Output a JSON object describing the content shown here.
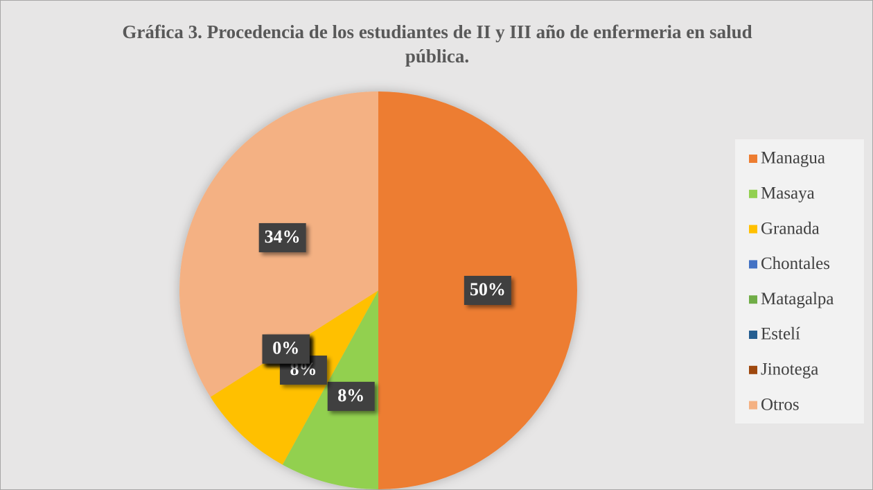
{
  "chart_data": {
    "type": "pie",
    "title": "Gráfica 3. Procedencia de los estudiantes de II y III año de enfermeria en salud pública.",
    "categories": [
      "Managua",
      "Masaya",
      "Granada",
      "Chontales",
      "Matagalpa",
      "Estelí",
      "Jinotega",
      "Otros"
    ],
    "values": [
      50,
      8,
      8,
      0,
      0,
      0,
      0,
      34
    ],
    "value_labels": [
      "50%",
      "8%",
      "8%",
      "0%",
      "0%",
      "0%",
      "0%",
      "34%"
    ],
    "colors": [
      "#ED7D31",
      "#92D050",
      "#FFC000",
      "#4472C4",
      "#70AD47",
      "#255E91",
      "#9E480E",
      "#F4B183"
    ],
    "legend": "right"
  }
}
